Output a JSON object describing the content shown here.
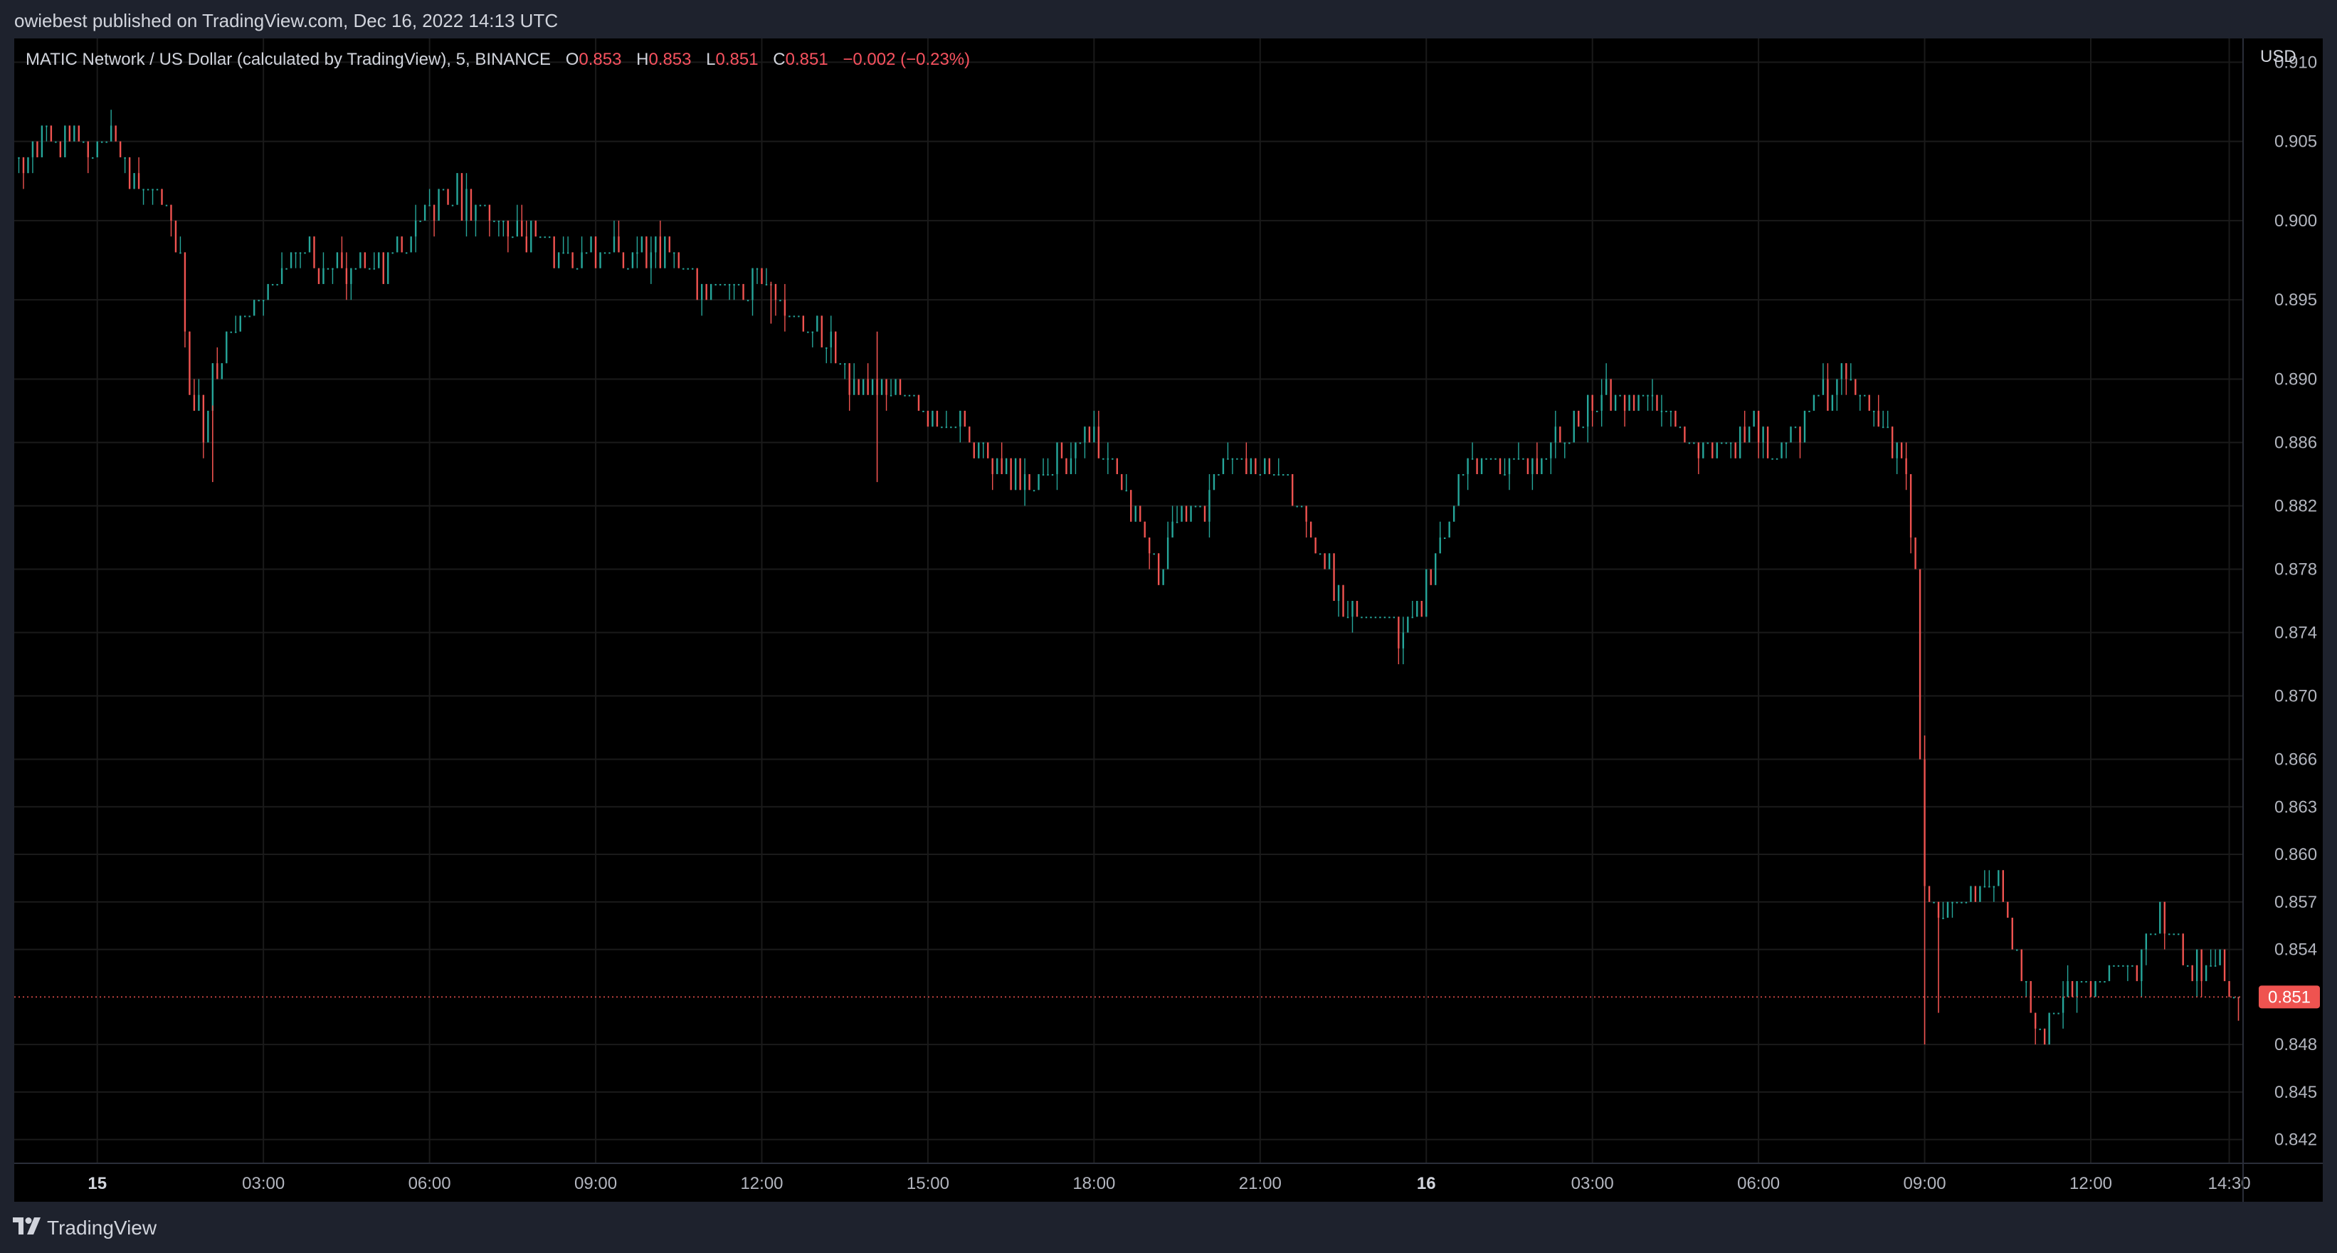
{
  "header": {
    "published": "owiebest published on TradingView.com, Dec 16, 2022 14:13 UTC"
  },
  "legend": {
    "symbol": "MATIC Network / US Dollar (calculated by TradingView), 5, BINANCE",
    "o_label": "O",
    "o_value": "0.853",
    "h_label": "H",
    "h_value": "0.853",
    "l_label": "L",
    "l_value": "0.851",
    "c_label": "C",
    "c_value": "0.851",
    "change": "−0.002 (−0.23%)"
  },
  "footer": {
    "brand": "TradingView",
    "logo_icon": "tradingview-logo-icon"
  },
  "chart_data": {
    "type": "candlestick",
    "symbol": "MATIC Network / US Dollar (calculated by TradingView), 5, BINANCE",
    "interval": "5",
    "currency": "USD",
    "last_price": 0.851,
    "last_price_label": "0.851",
    "ylim": [
      0.8405,
      0.9115
    ],
    "yticks": [
      0.91,
      0.905,
      0.9,
      0.895,
      0.89,
      0.886,
      0.882,
      0.878,
      0.874,
      0.87,
      0.866,
      0.863,
      0.86,
      0.857,
      0.854,
      0.848,
      0.845,
      0.842
    ],
    "ytick_labels": [
      "0.910",
      "0.905",
      "0.900",
      "0.895",
      "0.890",
      "0.886",
      "0.882",
      "0.878",
      "0.874",
      "0.870",
      "0.866",
      "0.863",
      "0.860",
      "0.857",
      "0.854",
      "0.848",
      "0.845",
      "0.842"
    ],
    "x_start": "2022-12-15 00:00",
    "x_end": "2022-12-16 14:45",
    "xticks": [
      {
        "label": "15",
        "t": "2022-12-15 00:00",
        "bold": true
      },
      {
        "label": "03:00",
        "t": "2022-12-15 03:00"
      },
      {
        "label": "06:00",
        "t": "2022-12-15 06:00"
      },
      {
        "label": "09:00",
        "t": "2022-12-15 09:00"
      },
      {
        "label": "12:00",
        "t": "2022-12-15 12:00"
      },
      {
        "label": "15:00",
        "t": "2022-12-15 15:00"
      },
      {
        "label": "18:00",
        "t": "2022-12-15 18:00"
      },
      {
        "label": "21:00",
        "t": "2022-12-15 21:00"
      },
      {
        "label": "16",
        "t": "2022-12-16 00:00",
        "bold": true
      },
      {
        "label": "03:00",
        "t": "2022-12-16 03:00"
      },
      {
        "label": "06:00",
        "t": "2022-12-16 06:00"
      },
      {
        "label": "09:00",
        "t": "2022-12-16 09:00"
      },
      {
        "label": "12:00",
        "t": "2022-12-16 12:00"
      },
      {
        "label": "14:30",
        "t": "2022-12-16 14:30"
      }
    ],
    "price_path": [
      [
        "2022-12-14 22:35",
        0.904
      ],
      [
        "2022-12-14 23:30",
        0.905
      ],
      [
        "2022-12-15 00:20",
        0.905
      ],
      [
        "2022-12-15 00:55",
        0.902
      ],
      [
        "2022-12-15 01:15",
        0.902
      ],
      [
        "2022-12-15 01:35",
        0.898
      ],
      [
        "2022-12-15 01:45",
        0.889
      ],
      [
        "2022-12-15 02:00",
        0.887
      ],
      [
        "2022-12-15 02:15",
        0.891
      ],
      [
        "2022-12-15 02:45",
        0.894
      ],
      [
        "2022-12-15 03:15",
        0.896
      ],
      [
        "2022-12-15 03:45",
        0.898
      ],
      [
        "2022-12-15 04:10",
        0.897
      ],
      [
        "2022-12-15 04:45",
        0.897
      ],
      [
        "2022-12-15 05:10",
        0.897
      ],
      [
        "2022-12-15 05:40",
        0.899
      ],
      [
        "2022-12-15 06:20",
        0.902
      ],
      [
        "2022-12-15 06:50",
        0.901
      ],
      [
        "2022-12-15 07:30",
        0.9
      ],
      [
        "2022-12-15 08:00",
        0.899
      ],
      [
        "2022-12-15 08:30",
        0.898
      ],
      [
        "2022-12-15 09:00",
        0.898
      ],
      [
        "2022-12-15 09:45",
        0.898
      ],
      [
        "2022-12-15 10:30",
        0.898
      ],
      [
        "2022-12-15 11:00",
        0.896
      ],
      [
        "2022-12-15 11:45",
        0.896
      ],
      [
        "2022-12-15 12:00",
        0.897
      ],
      [
        "2022-12-15 12:35",
        0.894
      ],
      [
        "2022-12-15 13:00",
        0.893
      ],
      [
        "2022-12-15 13:20",
        0.892
      ],
      [
        "2022-12-15 13:40",
        0.889
      ],
      [
        "2022-12-15 14:05",
        0.89
      ],
      [
        "2022-12-15 14:35",
        0.889
      ],
      [
        "2022-12-15 15:00",
        0.888
      ],
      [
        "2022-12-15 15:30",
        0.887
      ],
      [
        "2022-12-15 16:00",
        0.886
      ],
      [
        "2022-12-15 16:30",
        0.884
      ],
      [
        "2022-12-15 16:55",
        0.884
      ],
      [
        "2022-12-15 17:15",
        0.884
      ],
      [
        "2022-12-15 17:55",
        0.886
      ],
      [
        "2022-12-15 18:15",
        0.885
      ],
      [
        "2022-12-15 18:35",
        0.884
      ],
      [
        "2022-12-15 19:05",
        0.879
      ],
      [
        "2022-12-15 19:20",
        0.878
      ],
      [
        "2022-12-15 19:35",
        0.881
      ],
      [
        "2022-12-15 20:05",
        0.882
      ],
      [
        "2022-12-15 20:30",
        0.885
      ],
      [
        "2022-12-15 21:05",
        0.885
      ],
      [
        "2022-12-15 21:30",
        0.884
      ],
      [
        "2022-12-15 21:50",
        0.881
      ],
      [
        "2022-12-15 22:15",
        0.878
      ],
      [
        "2022-12-15 22:40",
        0.876
      ],
      [
        "2022-12-15 23:15",
        0.875
      ],
      [
        "2022-12-15 23:45",
        0.874
      ],
      [
        "2022-12-16 00:10",
        0.878
      ],
      [
        "2022-12-16 00:35",
        0.882
      ],
      [
        "2022-12-16 00:55",
        0.885
      ],
      [
        "2022-12-16 01:30",
        0.885
      ],
      [
        "2022-12-16 02:00",
        0.885
      ],
      [
        "2022-12-16 02:30",
        0.886
      ],
      [
        "2022-12-16 03:00",
        0.888
      ],
      [
        "2022-12-16 03:25",
        0.889
      ],
      [
        "2022-12-16 03:55",
        0.889
      ],
      [
        "2022-12-16 04:25",
        0.888
      ],
      [
        "2022-12-16 05:00",
        0.886
      ],
      [
        "2022-12-16 05:30",
        0.886
      ],
      [
        "2022-12-16 05:55",
        0.887
      ],
      [
        "2022-12-16 06:20",
        0.885
      ],
      [
        "2022-12-16 06:45",
        0.887
      ],
      [
        "2022-12-16 07:10",
        0.889
      ],
      [
        "2022-12-16 07:40",
        0.89
      ],
      [
        "2022-12-16 08:05",
        0.888
      ],
      [
        "2022-12-16 08:35",
        0.886
      ],
      [
        "2022-12-16 08:45",
        0.883
      ],
      [
        "2022-12-16 08:55",
        0.877
      ],
      [
        "2022-12-16 09:05",
        0.858
      ],
      [
        "2022-12-16 09:20",
        0.856
      ],
      [
        "2022-12-16 09:40",
        0.857
      ],
      [
        "2022-12-16 10:00",
        0.858
      ],
      [
        "2022-12-16 10:25",
        0.858
      ],
      [
        "2022-12-16 10:45",
        0.853
      ],
      [
        "2022-12-16 11:05",
        0.849
      ],
      [
        "2022-12-16 11:30",
        0.85
      ],
      [
        "2022-12-16 11:50",
        0.852
      ],
      [
        "2022-12-16 12:20",
        0.852
      ],
      [
        "2022-12-16 12:50",
        0.853
      ],
      [
        "2022-12-16 13:10",
        0.855
      ],
      [
        "2022-12-16 13:25",
        0.856
      ],
      [
        "2022-12-16 13:45",
        0.854
      ],
      [
        "2022-12-16 14:05",
        0.852
      ],
      [
        "2022-12-16 14:25",
        0.853
      ],
      [
        "2022-12-16 14:40",
        0.851
      ]
    ],
    "spikes": [
      {
        "t": "2022-12-15 02:05",
        "low": 0.8835
      },
      {
        "t": "2022-12-15 14:05",
        "high": 0.893,
        "low": 0.8835
      },
      {
        "t": "2022-12-15 12:10",
        "low": 0.8935
      },
      {
        "t": "2022-12-16 09:00",
        "low": 0.848
      },
      {
        "t": "2022-12-16 09:15",
        "low": 0.85
      },
      {
        "t": "2022-12-16 14:40",
        "low": 0.8495
      }
    ],
    "grid": true,
    "up_color": "#26a69a",
    "down_color": "#ef5350"
  }
}
